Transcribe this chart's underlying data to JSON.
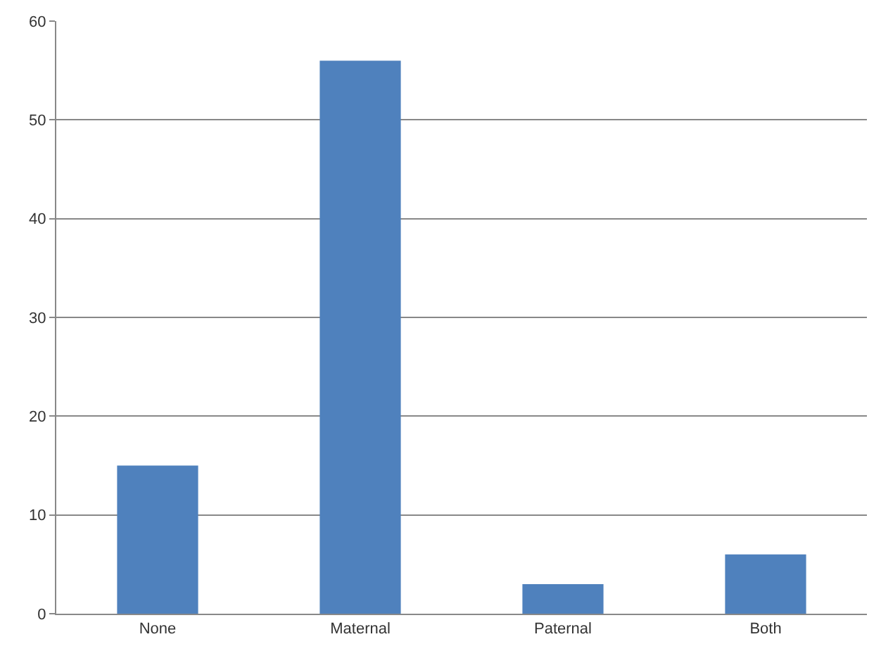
{
  "chart_data": {
    "type": "bar",
    "categories": [
      "None",
      "Maternal",
      "Paternal",
      "Both"
    ],
    "values": [
      15,
      56,
      3,
      6
    ],
    "color": "#4f81bd",
    "ylim": [
      0,
      60
    ],
    "yticks": [
      0,
      10,
      20,
      30,
      40,
      50,
      60
    ],
    "grid": "y"
  }
}
